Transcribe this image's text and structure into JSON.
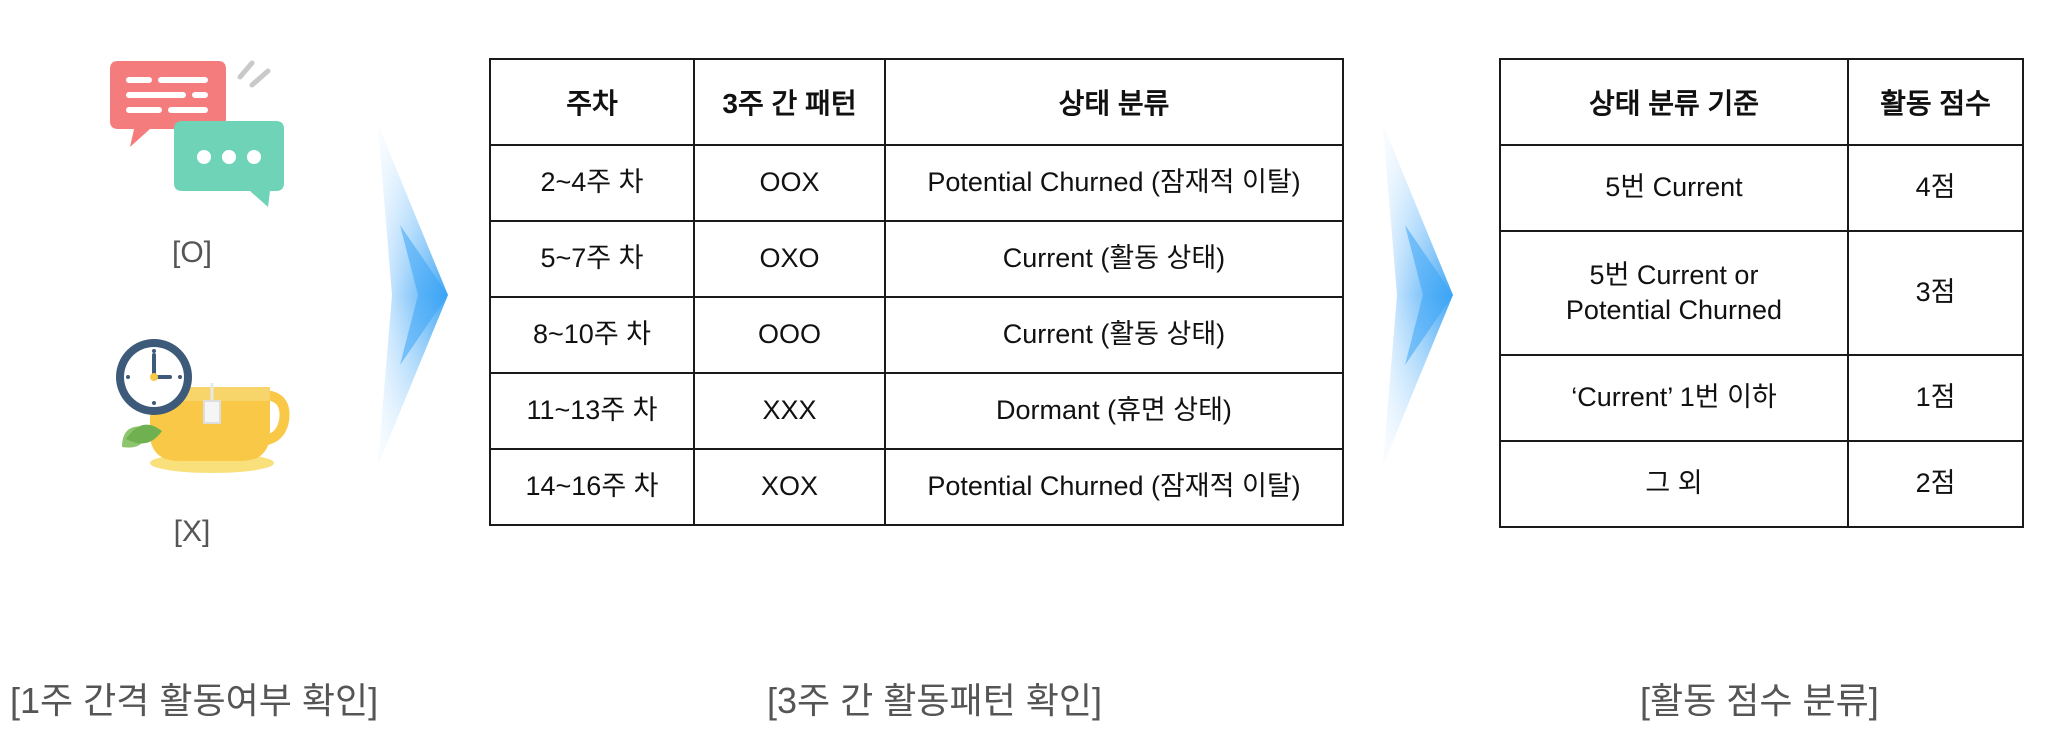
{
  "step1": {
    "icon_o_label": "[O]",
    "icon_x_label": "[X]",
    "caption": "[1주 간격 활동여부 확인]"
  },
  "step2": {
    "headers": [
      "주차",
      "3주 간 패턴",
      "상태 분류"
    ],
    "rows": [
      [
        "2~4주 차",
        "OOX",
        "Potential Churned (잠재적 이탈)"
      ],
      [
        "5~7주 차",
        "OXO",
        "Current (활동 상태)"
      ],
      [
        "8~10주 차",
        "OOO",
        "Current (활동 상태)"
      ],
      [
        "11~13주 차",
        "XXX",
        "Dormant (휴면 상태)"
      ],
      [
        "14~16주 차",
        "XOX",
        "Potential Churned (잠재적 이탈)"
      ]
    ],
    "caption": "[3주 간 활동패턴 확인]"
  },
  "step3": {
    "headers": [
      "상태 분류 기준",
      "활동 점수"
    ],
    "rows": [
      [
        "5번 Current",
        "4점"
      ],
      [
        "5번 Current or\nPotential Churned",
        "3점"
      ],
      [
        "‘Current’ 1번 이하",
        "1점"
      ],
      [
        "그 외",
        "2점"
      ]
    ],
    "caption": "[활동 점수 분류]"
  },
  "colors": {
    "chat_red": "#F47C7C",
    "chat_teal": "#6FD3B7",
    "cup_yellow": "#F9C846",
    "clock_blue": "#3E5A7A",
    "arrow_blue": "#3BA4F5"
  }
}
